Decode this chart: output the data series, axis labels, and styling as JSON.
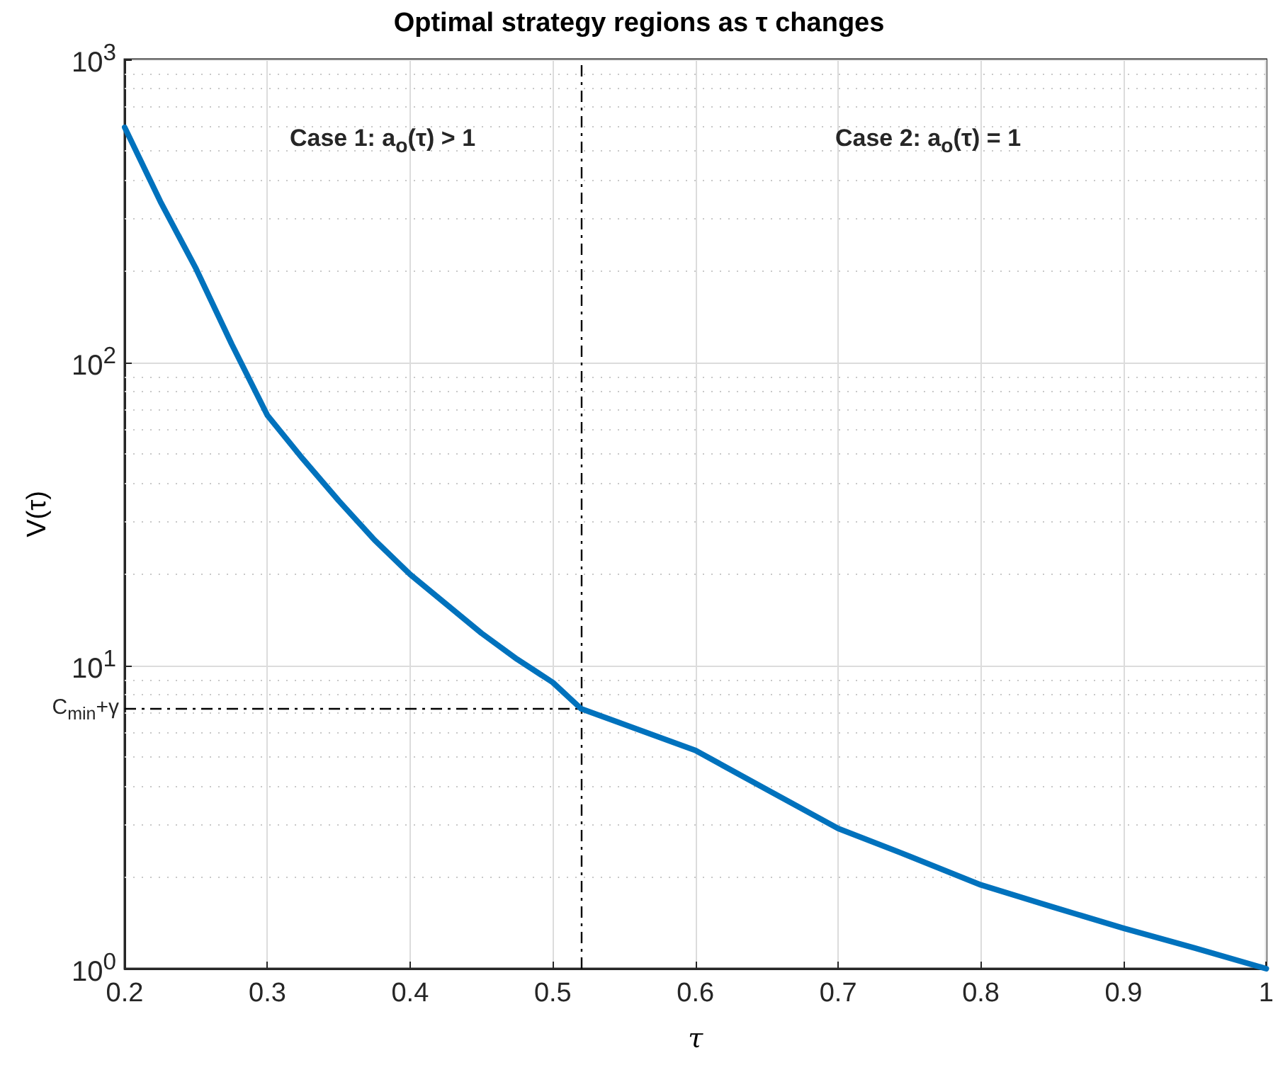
{
  "chart_data": {
    "type": "line",
    "title": "Optimal strategy regions as τ changes",
    "xlabel": "τ",
    "ylabel": "V(τ)",
    "x": [
      0.2,
      0.225,
      0.25,
      0.275,
      0.3,
      0.325,
      0.35,
      0.375,
      0.4,
      0.425,
      0.45,
      0.475,
      0.5,
      0.52,
      0.55,
      0.6,
      0.65,
      0.7,
      0.75,
      0.8,
      0.85,
      0.9,
      0.95,
      1
    ],
    "series": [
      {
        "color": "#0072bd",
        "values": [
          597,
          340,
          204,
          115,
          67,
          48,
          35,
          26,
          20,
          16,
          12.8,
          10.5,
          8.8,
          7.2,
          6.4,
          5.25,
          3.9,
          2.9,
          2.35,
          1.89,
          1.6,
          1.36,
          1.17,
          1
        ]
      }
    ],
    "log": "y",
    "xlim": [
      0.2,
      1
    ],
    "xticks": [
      0.2,
      0.3,
      0.4,
      0.5,
      0.6,
      0.7,
      0.8,
      0.9,
      1
    ],
    "ylim": [
      1,
      1000
    ],
    "yticks": [
      {
        "value": 1,
        "label": "10$^{0}$"
      },
      {
        "value": 10,
        "label": "10$^{1}$"
      },
      {
        "value": 100,
        "label": "10$^{2}$"
      },
      {
        "value": 1000,
        "label": "10$^{3}$"
      }
    ],
    "ref_lines": [
      {
        "axis": "x",
        "value": 0.52,
        "line_style": "dashdot",
        "color": "#000000"
      },
      {
        "axis": "y",
        "value": 7.2,
        "label": "C$_{min}$+γ",
        "line_style": "dashdot",
        "color": "#000000"
      }
    ],
    "annotations": [
      "Case 1: a$_{o}$(τ) > 1",
      "Case 2: a$_{o}$(τ) = 1"
    ],
    "grid": true,
    "marker": "none",
    "line_style": "solid"
  }
}
